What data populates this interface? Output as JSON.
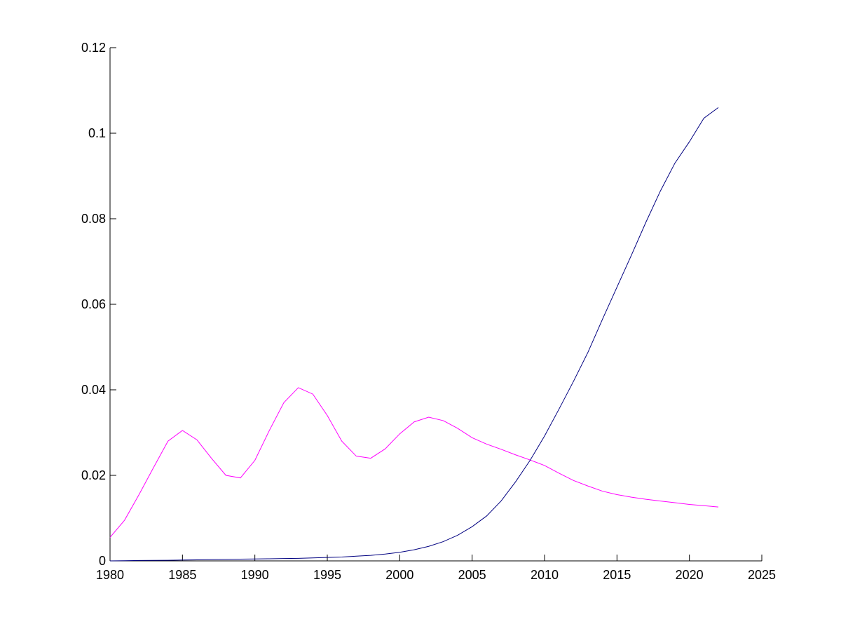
{
  "chart_data": {
    "type": "line",
    "title": "",
    "xlabel": "",
    "ylabel": "",
    "xlim": [
      1980,
      2025
    ],
    "ylim": [
      0,
      0.12
    ],
    "grid": false,
    "legend": "none",
    "x_ticks": [
      1980,
      1985,
      1990,
      1995,
      2000,
      2005,
      2010,
      2015,
      2020,
      2025
    ],
    "x_tick_labels": [
      "1980",
      "1985",
      "1990",
      "1995",
      "2000",
      "2005",
      "2010",
      "2015",
      "2020",
      "2025"
    ],
    "y_ticks": [
      0,
      0.02,
      0.04,
      0.06,
      0.08,
      0.1,
      0.12
    ],
    "y_tick_labels": [
      "0",
      "0.02",
      "0.04",
      "0.06",
      "0.08",
      "0.1",
      "0.12"
    ],
    "x": [
      1980,
      1981,
      1982,
      1983,
      1984,
      1985,
      1986,
      1987,
      1988,
      1989,
      1990,
      1991,
      1992,
      1993,
      1994,
      1995,
      1996,
      1997,
      1998,
      1999,
      2000,
      2001,
      2002,
      2003,
      2004,
      2005,
      2006,
      2007,
      2008,
      2009,
      2010,
      2011,
      2012,
      2013,
      2014,
      2015,
      2016,
      2017,
      2018,
      2019,
      2020,
      2021,
      2022
    ],
    "series": [
      {
        "color": "#ff00ff",
        "values": [
          0.0055,
          0.0095,
          0.0155,
          0.0218,
          0.028,
          0.0305,
          0.0283,
          0.024,
          0.02,
          0.0194,
          0.0235,
          0.0305,
          0.037,
          0.0405,
          0.039,
          0.034,
          0.028,
          0.0245,
          0.024,
          0.0262,
          0.0297,
          0.0325,
          0.0336,
          0.0328,
          0.031,
          0.0288,
          0.0273,
          0.0261,
          0.0248,
          0.0236,
          0.0223,
          0.0205,
          0.0188,
          0.0175,
          0.0163,
          0.0155,
          0.0149,
          0.0144,
          0.014,
          0.0136,
          0.0132,
          0.0129,
          0.0126
        ]
      },
      {
        "color": "#000080",
        "values": [
          0.0,
          5e-05,
          0.0001,
          0.00012,
          0.00015,
          0.0002,
          0.00025,
          0.0003,
          0.00035,
          0.0004,
          0.00045,
          0.0005,
          0.00055,
          0.0006,
          0.0007,
          0.0008,
          0.0009,
          0.0011,
          0.0013,
          0.0016,
          0.002,
          0.0026,
          0.0034,
          0.0045,
          0.006,
          0.008,
          0.0105,
          0.014,
          0.0185,
          0.0235,
          0.0292,
          0.0355,
          0.042,
          0.0488,
          0.0565,
          0.064,
          0.0715,
          0.0792,
          0.0865,
          0.093,
          0.098,
          0.1035,
          0.106
        ]
      }
    ]
  }
}
